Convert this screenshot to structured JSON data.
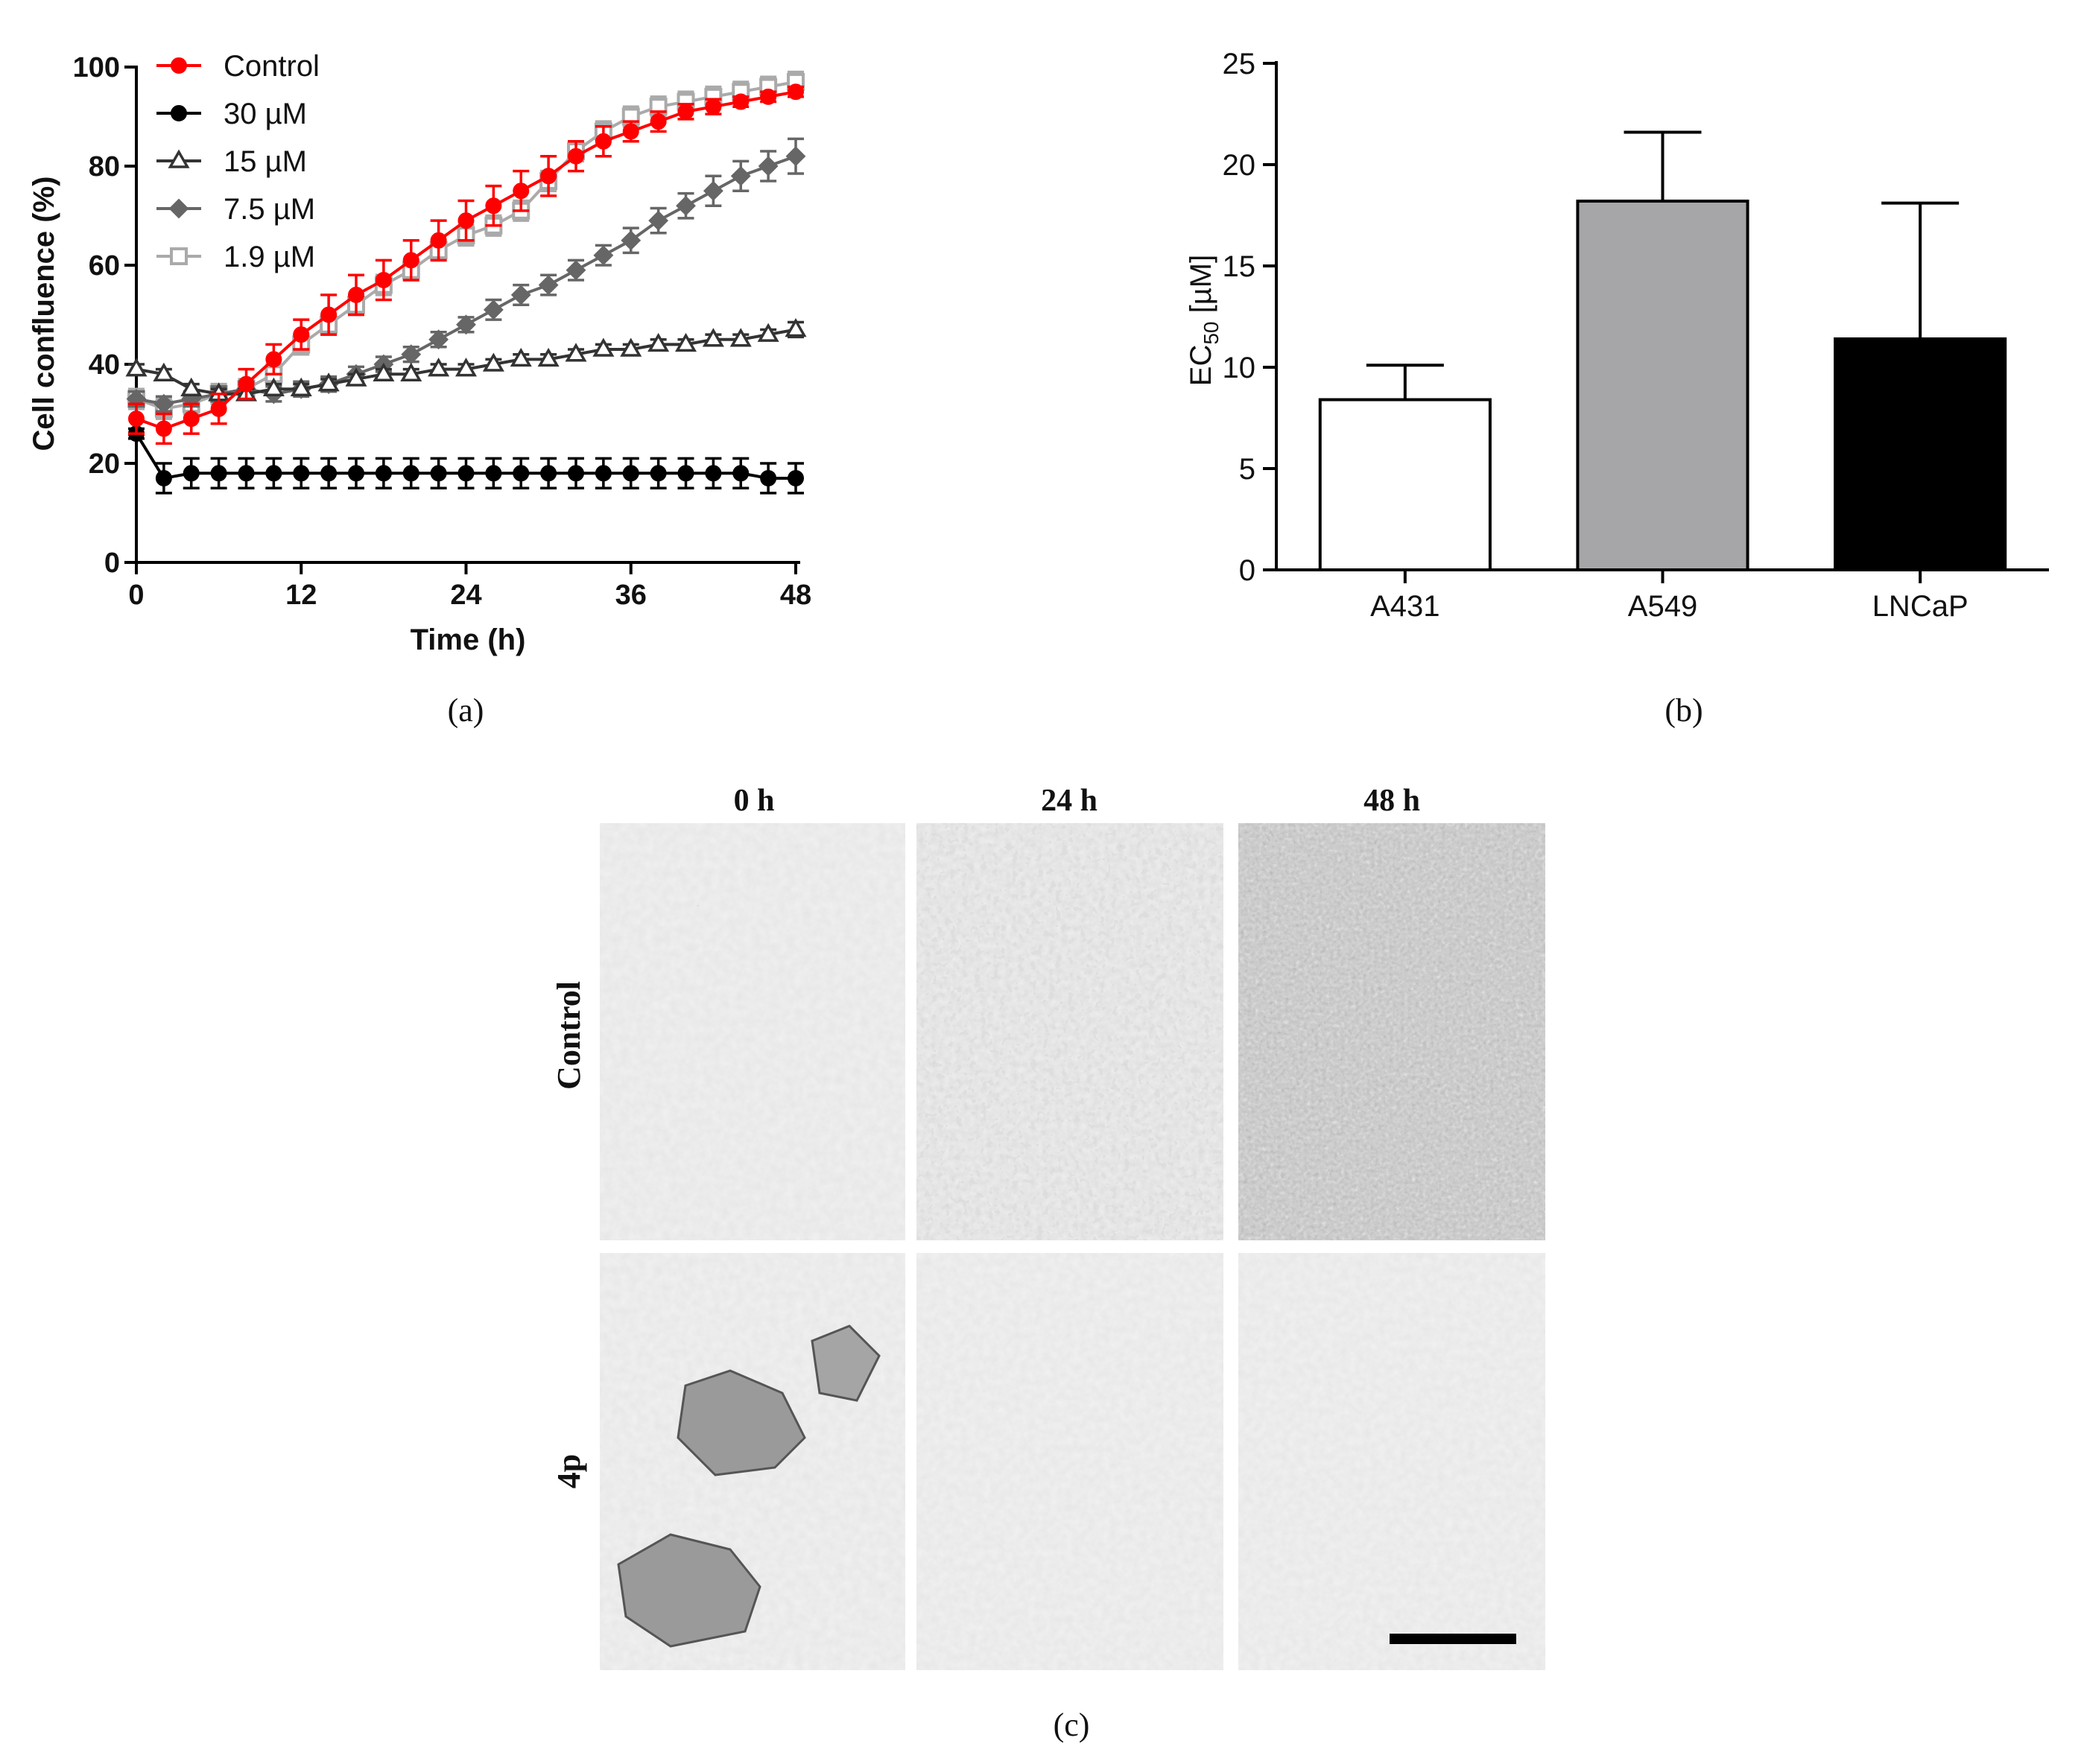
{
  "chart_data": [
    {
      "panel": "(a)",
      "type": "line",
      "xlabel": "Time (h)",
      "ylabel": "Cell confluence (%)",
      "xlim": [
        0,
        48
      ],
      "ylim": [
        0,
        100
      ],
      "xticks": [
        "0",
        "12",
        "24",
        "36",
        "48"
      ],
      "yticks": [
        "0",
        "20",
        "40",
        "60",
        "80",
        "100"
      ],
      "legend_position": "top-left",
      "x": [
        0,
        2,
        4,
        6,
        8,
        10,
        12,
        14,
        16,
        18,
        20,
        22,
        24,
        26,
        28,
        30,
        32,
        34,
        36,
        38,
        40,
        42,
        44,
        46,
        48
      ],
      "series": [
        {
          "name": "Control",
          "marker": "circle-filled",
          "color": "#ff0000",
          "values": [
            29,
            27,
            29,
            31,
            36,
            41,
            46,
            50,
            54,
            57,
            61,
            65,
            69,
            72,
            75,
            78,
            82,
            85,
            87,
            89,
            91,
            92,
            93,
            94,
            95
          ],
          "errors": [
            3,
            3,
            3,
            3,
            3,
            3,
            3,
            4,
            4,
            4,
            4,
            4,
            4,
            4,
            4,
            4,
            3,
            3,
            2,
            2,
            1.5,
            1.5,
            1,
            1,
            1
          ]
        },
        {
          "name": "30 µM",
          "marker": "circle-filled",
          "color": "#000000",
          "values": [
            26,
            17,
            18,
            18,
            18,
            18,
            18,
            18,
            18,
            18,
            18,
            18,
            18,
            18,
            18,
            18,
            18,
            18,
            18,
            18,
            18,
            18,
            18,
            17,
            17
          ],
          "errors": [
            1,
            3,
            3,
            3,
            3,
            3,
            3,
            3,
            3,
            3,
            3,
            3,
            3,
            3,
            3,
            3,
            3,
            3,
            3,
            3,
            3,
            3,
            3,
            3,
            3
          ]
        },
        {
          "name": "15 µM",
          "marker": "triangle-open",
          "color": "#333333",
          "values": [
            39,
            38,
            35,
            34,
            34,
            35,
            35,
            36,
            37,
            38,
            38,
            39,
            39,
            40,
            41,
            41,
            42,
            43,
            43,
            44,
            44,
            45,
            45,
            46,
            47
          ],
          "errors": [
            1,
            1,
            1,
            1,
            1,
            1,
            1,
            1,
            1,
            1,
            1,
            1,
            1,
            1,
            1,
            1,
            1,
            1,
            1,
            1,
            1,
            1,
            1,
            1,
            1.5
          ]
        },
        {
          "name": "7.5 µM",
          "marker": "diamond-filled",
          "color": "#666666",
          "values": [
            33,
            32,
            33,
            34,
            35,
            34,
            35,
            36,
            38,
            40,
            42,
            45,
            48,
            51,
            54,
            56,
            59,
            62,
            65,
            69,
            72,
            75,
            78,
            80,
            82
          ],
          "errors": [
            1.5,
            1.5,
            1.5,
            1.5,
            1.5,
            1.5,
            1.5,
            1.5,
            1.5,
            1.5,
            1.5,
            1.5,
            1.5,
            2,
            2,
            2,
            2,
            2,
            2.5,
            2.5,
            2.5,
            3,
            3,
            3,
            3.5
          ]
        },
        {
          "name": "1.9 µM",
          "marker": "square-open",
          "color": "#aaaaaa",
          "values": [
            33,
            31,
            32,
            34,
            35,
            38,
            44,
            48,
            52,
            56,
            59,
            63,
            66,
            68,
            71,
            77,
            83,
            87,
            90,
            92,
            93,
            94,
            95,
            96,
            97
          ],
          "errors": [
            2,
            2,
            2,
            2,
            2,
            2,
            2,
            2,
            2,
            2,
            2,
            2,
            2,
            2,
            2,
            2,
            2,
            2,
            2,
            2,
            2,
            2,
            2,
            2,
            2
          ]
        }
      ]
    },
    {
      "panel": "(b)",
      "type": "bar",
      "ylabel": "EC50 [µM]",
      "ylabel_main": "EC",
      "ylabel_sub": "50",
      "ylabel_unit": " [µM]",
      "ylim": [
        0,
        25
      ],
      "yticks": [
        "0",
        "5",
        "10",
        "15",
        "20",
        "25"
      ],
      "categories": [
        "A431",
        "A549",
        "LNCaP"
      ],
      "values": [
        8.4,
        18.2,
        11.4
      ],
      "errors": [
        1.7,
        3.4,
        6.7
      ],
      "colors": [
        "#ffffff",
        "#a6a6a8",
        "#000000"
      ]
    }
  ],
  "panel_c": {
    "label": "(c)",
    "columns": [
      "0 h",
      "24 h",
      "48 h"
    ],
    "rows": [
      "Control",
      "4p"
    ]
  }
}
